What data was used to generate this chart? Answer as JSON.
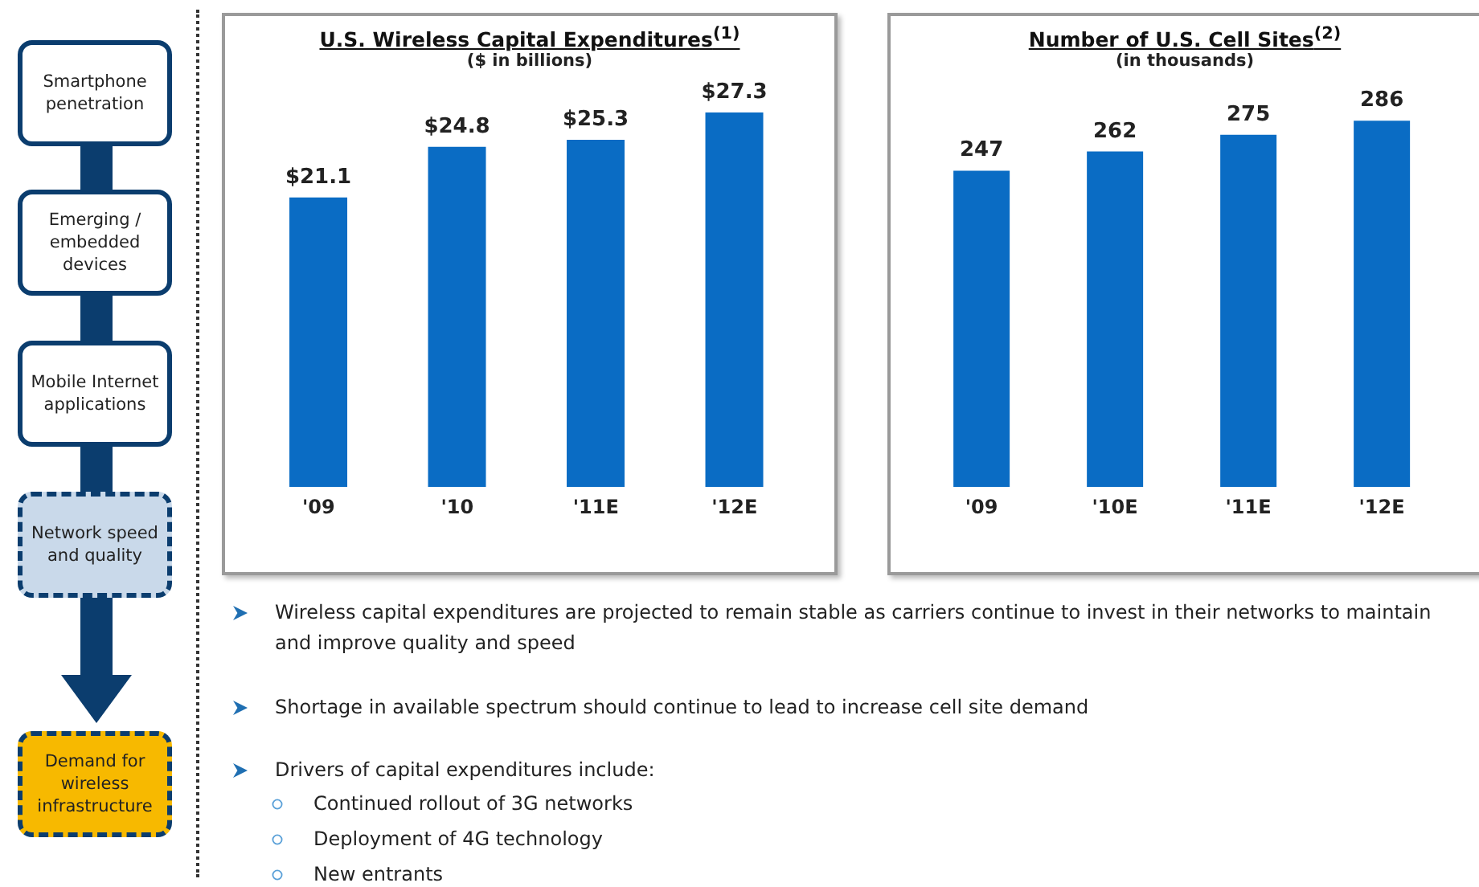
{
  "chart_data": [
    {
      "type": "other",
      "annotations": [
        "Smartphone penetration",
        "Emerging / embedded devices",
        "Mobile Internet applications",
        "Network speed and quality",
        "Demand for wireless infrastructure"
      ]
    },
    {
      "type": "bar",
      "title": "U.S. Wireless Capital Expenditures$^{(1)}$",
      "subtitle": "($ in billions)",
      "categories": [
        "'09",
        "'10",
        "'11E",
        "'12E"
      ],
      "values": [
        21.1,
        24.8,
        25.3,
        27.3
      ],
      "value_labels": [
        "$21.1",
        "$24.8",
        "$25.3",
        "$27.3"
      ],
      "color": "#0a6cc4",
      "tick_labels": "x"
    },
    {
      "type": "bar",
      "title": "Number of U.S. Cell Sites$^{(2)}$",
      "subtitle": "(in thousands)",
      "categories": [
        "'09",
        "'10E",
        "'11E",
        "'12E"
      ],
      "values": [
        247,
        262,
        275,
        286
      ],
      "data_labels": true,
      "color": "#0a6cc4",
      "tick_labels": "x"
    },
    {
      "type": "other",
      "annotations": [
        "Wireless capital expenditures are projected to remain stable as carriers continue to invest in their networks to maintain and improve quality and speed",
        "Shortage in available spectrum should continue to lead to increase cell site demand",
        "Drivers of capital expenditures include:",
        "Continued rollout of 3G networks",
        "Deployment of 4G technology",
        "New entrants"
      ]
    }
  ]
}
